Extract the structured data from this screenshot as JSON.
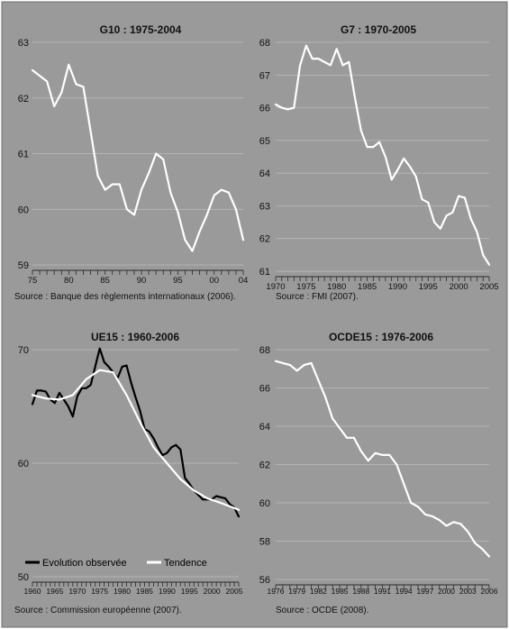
{
  "chart_data": [
    {
      "type": "line",
      "title": "G10 : 1975-2004",
      "source": "Source : Banque des règlements internationaux (2006).",
      "x_tick_labels": [
        "75",
        "80",
        "85",
        "90",
        "95",
        "00",
        "04"
      ],
      "x_tick_values": [
        1975,
        1980,
        1985,
        1990,
        1995,
        2000,
        2004
      ],
      "y_ticks": [
        59,
        60,
        61,
        62,
        63
      ],
      "xlim": [
        1975,
        2004
      ],
      "ylim": [
        59,
        63
      ],
      "grid": true,
      "series": [
        {
          "name": "",
          "color": "#ffffff",
          "x": [
            1975,
            1976,
            1977,
            1978,
            1979,
            1980,
            1981,
            1982,
            1983,
            1984,
            1985,
            1986,
            1987,
            1988,
            1989,
            1990,
            1991,
            1992,
            1993,
            1994,
            1995,
            1996,
            1997,
            1998,
            1999,
            2000,
            2001,
            2002,
            2003,
            2004
          ],
          "y": [
            62.5,
            62.4,
            62.3,
            61.85,
            62.1,
            62.6,
            62.25,
            62.2,
            61.4,
            60.6,
            60.35,
            60.45,
            60.45,
            60.0,
            59.9,
            60.35,
            60.65,
            61.0,
            60.9,
            60.3,
            59.95,
            59.45,
            59.25,
            59.6,
            59.9,
            60.25,
            60.35,
            60.3,
            60.0,
            59.45
          ]
        }
      ]
    },
    {
      "type": "line",
      "title": "G7 : 1970-2005",
      "source": "Source : FMI (2007).",
      "x_tick_labels": [
        "1970",
        "1975",
        "1980",
        "1985",
        "1990",
        "1995",
        "2000",
        "2005"
      ],
      "x_tick_values": [
        1970,
        1975,
        1980,
        1985,
        1990,
        1995,
        2000,
        2005
      ],
      "y_ticks": [
        61,
        62,
        63,
        64,
        65,
        66,
        67,
        68
      ],
      "xlim": [
        1970,
        2005
      ],
      "ylim": [
        61,
        68
      ],
      "grid": true,
      "series": [
        {
          "name": "",
          "color": "#ffffff",
          "x": [
            1970,
            1971,
            1972,
            1973,
            1974,
            1975,
            1976,
            1977,
            1978,
            1979,
            1980,
            1981,
            1982,
            1983,
            1984,
            1985,
            1986,
            1987,
            1988,
            1989,
            1990,
            1991,
            1992,
            1993,
            1994,
            1995,
            1996,
            1997,
            1998,
            1999,
            2000,
            2001,
            2002,
            2003,
            2004,
            2005
          ],
          "y": [
            66.1,
            66.0,
            65.95,
            66.0,
            67.3,
            67.9,
            67.5,
            67.5,
            67.4,
            67.3,
            67.8,
            67.3,
            67.4,
            66.3,
            65.3,
            64.8,
            64.8,
            64.95,
            64.5,
            63.8,
            64.1,
            64.45,
            64.2,
            63.9,
            63.2,
            63.1,
            62.5,
            62.3,
            62.7,
            62.8,
            63.3,
            63.25,
            62.6,
            62.2,
            61.5,
            61.2
          ]
        }
      ]
    },
    {
      "type": "line",
      "title": "UE15 : 1960-2006",
      "source": "Source : Commission européenne (2007).",
      "x_tick_labels": [
        "1960",
        "1965",
        "1970",
        "1975",
        "1980",
        "1985",
        "1990",
        "1995",
        "2000",
        "2005"
      ],
      "x_tick_values": [
        1960,
        1965,
        1970,
        1975,
        1980,
        1985,
        1990,
        1995,
        2000,
        2005
      ],
      "y_ticks": [
        50,
        60,
        70
      ],
      "xlim": [
        1960,
        2006
      ],
      "ylim": [
        50,
        70
      ],
      "grid": true,
      "legend": "bottom-left",
      "series": [
        {
          "name": "Evolution observée",
          "color": "#000000",
          "x": [
            1960,
            1961,
            1962,
            1963,
            1964,
            1965,
            1966,
            1967,
            1968,
            1969,
            1970,
            1971,
            1972,
            1973,
            1974,
            1975,
            1976,
            1977,
            1978,
            1979,
            1980,
            1981,
            1982,
            1983,
            1984,
            1985,
            1986,
            1987,
            1988,
            1989,
            1990,
            1991,
            1992,
            1993,
            1994,
            1995,
            1996,
            1997,
            1998,
            1999,
            2000,
            2001,
            2002,
            2003,
            2004,
            2005,
            2006
          ],
          "y": [
            65.2,
            66.4,
            66.4,
            66.3,
            65.6,
            65.3,
            66.2,
            65.6,
            65.0,
            64.1,
            65.9,
            66.6,
            66.6,
            66.9,
            68.5,
            70.1,
            68.9,
            68.5,
            68.0,
            67.5,
            68.5,
            68.6,
            67.1,
            65.8,
            64.6,
            63.0,
            62.8,
            62.2,
            61.4,
            60.7,
            60.9,
            61.4,
            61.6,
            61.2,
            58.7,
            58.2,
            57.6,
            57.2,
            56.8,
            56.8,
            56.8,
            57.1,
            57.0,
            56.9,
            56.4,
            56.1,
            55.3
          ]
        },
        {
          "name": "Tendence",
          "color": "#ffffff",
          "x": [
            1960,
            1963,
            1966,
            1969,
            1972,
            1975,
            1978,
            1981,
            1984,
            1987,
            1990,
            1993,
            1996,
            1999,
            2002,
            2006
          ],
          "y": [
            66.0,
            65.7,
            65.6,
            66.0,
            67.4,
            68.2,
            68.0,
            66.0,
            63.6,
            61.4,
            60.0,
            58.6,
            57.6,
            56.9,
            56.5,
            55.9
          ]
        }
      ]
    },
    {
      "type": "line",
      "title": "OCDE15 : 1976-2006",
      "source": "Source : OCDE (2008).",
      "x_tick_labels": [
        "1976",
        "1979",
        "1982",
        "1985",
        "1988",
        "1991",
        "1994",
        "1997",
        "2000",
        "2003",
        "2006"
      ],
      "x_tick_values": [
        1976,
        1979,
        1982,
        1985,
        1988,
        1991,
        1994,
        1997,
        2000,
        2003,
        2006
      ],
      "y_ticks": [
        56,
        58,
        60,
        62,
        64,
        66,
        68
      ],
      "xlim": [
        1976,
        2006
      ],
      "ylim": [
        56,
        68
      ],
      "grid": true,
      "series": [
        {
          "name": "",
          "color": "#ffffff",
          "x": [
            1976,
            1977,
            1978,
            1979,
            1980,
            1981,
            1982,
            1983,
            1984,
            1985,
            1986,
            1987,
            1988,
            1989,
            1990,
            1991,
            1992,
            1993,
            1994,
            1995,
            1996,
            1997,
            1998,
            1999,
            2000,
            2001,
            2002,
            2003,
            2004,
            2005,
            2006
          ],
          "y": [
            67.4,
            67.3,
            67.2,
            66.9,
            67.2,
            67.3,
            66.4,
            65.5,
            64.4,
            63.9,
            63.4,
            63.4,
            62.7,
            62.2,
            62.6,
            62.5,
            62.5,
            62.0,
            61.0,
            60.0,
            59.8,
            59.4,
            59.3,
            59.1,
            58.8,
            59.0,
            58.9,
            58.5,
            57.9,
            57.6,
            57.2
          ]
        }
      ]
    }
  ]
}
